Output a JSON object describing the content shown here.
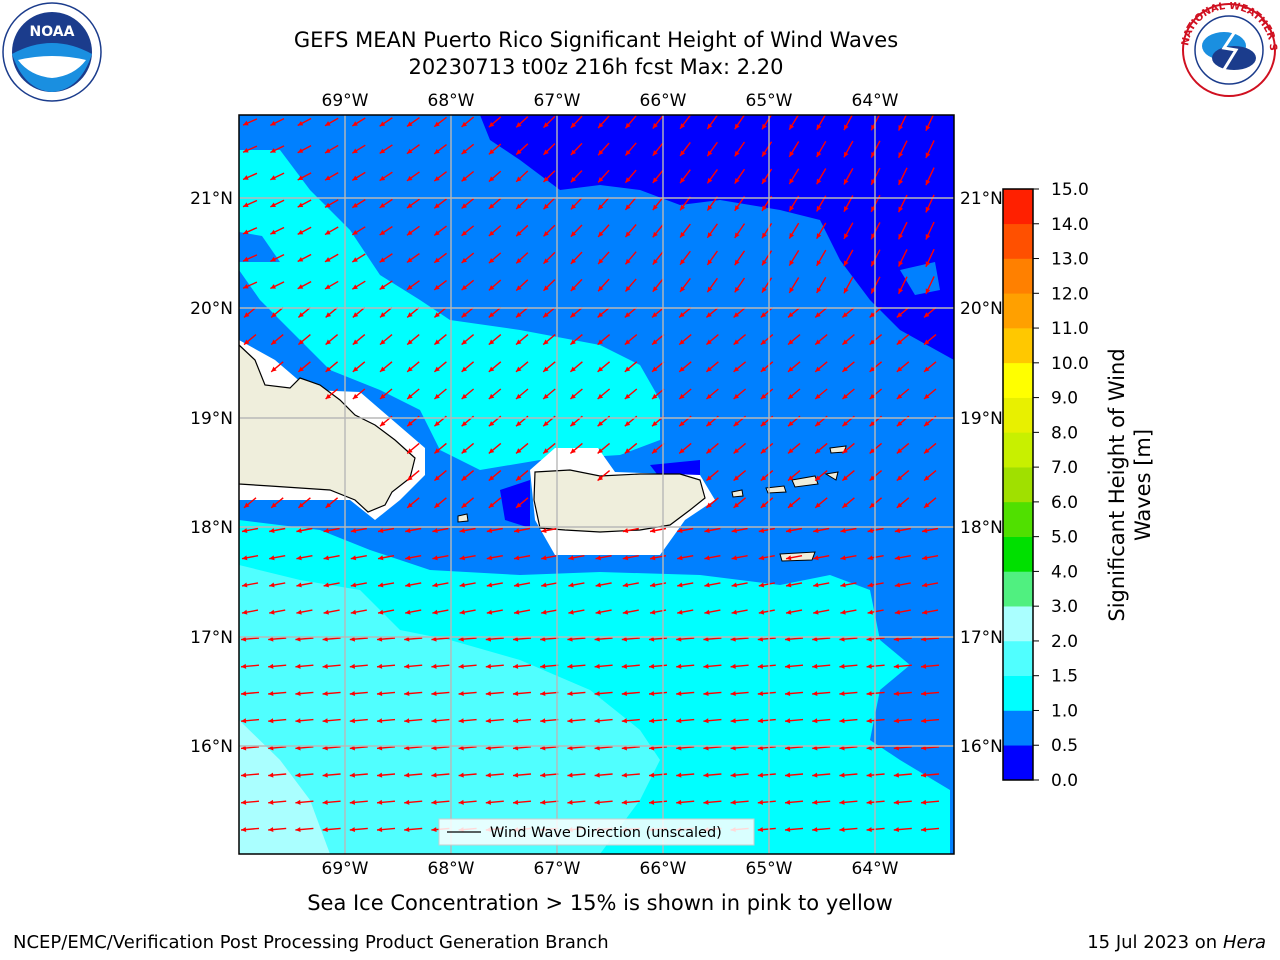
{
  "title": {
    "line1": "GEFS MEAN Puerto Rico Significant Height of Wind Waves",
    "line2": "20230713 t00z 216h fcst   Max: 2.20"
  },
  "map": {
    "lon_labels": [
      "69°W",
      "68°W",
      "67°W",
      "66°W",
      "65°W",
      "64°W"
    ],
    "lat_labels": [
      "21°N",
      "20°N",
      "19°N",
      "18°N",
      "17°N",
      "16°N"
    ],
    "legend_label": "Wind Wave Direction (unscaled)",
    "colors": {
      "band_0_0_5": "#0000ff",
      "band_0_5_1_0": "#0080ff",
      "band_1_0_1_5": "#00ffff",
      "band_1_5_2_0": "#50ffff",
      "band_2_0_3_0": "#aaffff",
      "land": "#efeedc",
      "arrow": "#ff0000",
      "grid": "#b8b8b8"
    }
  },
  "colorbar": {
    "label_line1": "Significant Height of Wind",
    "label_line2": "Waves [m]",
    "ticks": [
      "0.0",
      "0.5",
      "1.0",
      "1.5",
      "2.0",
      "3.0",
      "4.0",
      "5.0",
      "6.0",
      "7.0",
      "8.0",
      "9.0",
      "10.0",
      "11.0",
      "12.0",
      "13.0",
      "14.0",
      "15.0"
    ],
    "colors": [
      "#0000ff",
      "#0080ff",
      "#00ffff",
      "#50ffff",
      "#aaffff",
      "#50f080",
      "#00e000",
      "#50e000",
      "#a0e000",
      "#c8f000",
      "#e8f000",
      "#ffff00",
      "#ffc800",
      "#ffa000",
      "#ff8000",
      "#ff5000",
      "#ff2000"
    ]
  },
  "subnote": "Sea Ice Concentration > 15% is shown in pink to yellow",
  "footer": {
    "left": "NCEP/EMC/Verification Post Processing Product Generation Branch",
    "right_date": "15 Jul 2023 on ",
    "right_model": "Hera"
  },
  "logos": {
    "noaa_text": "NOAA",
    "nws_ring_text": "NATIONAL WEATHER SERVICE"
  }
}
